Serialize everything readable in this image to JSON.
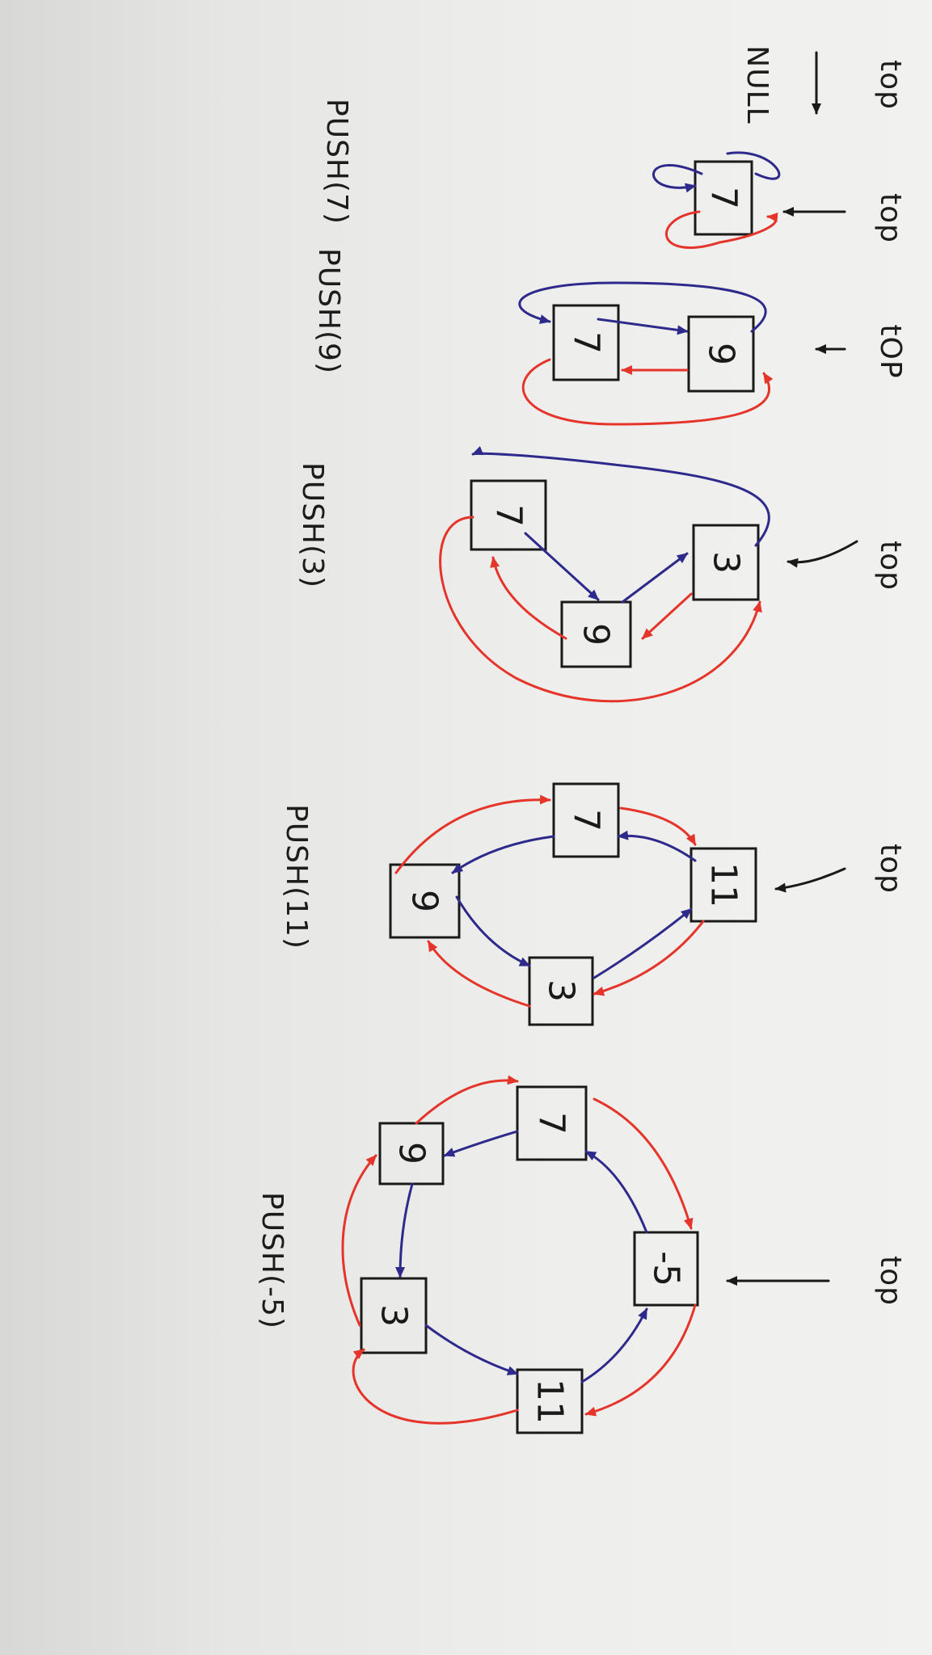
{
  "labels": {
    "top": "top",
    "top_alt": "tOP",
    "null": "NULL"
  },
  "operations": [
    {
      "label": "PUSH(7)",
      "values": [
        "7"
      ]
    },
    {
      "label": "PUSH(9)",
      "values": [
        "7",
        "9"
      ]
    },
    {
      "label": "PUSH(3)",
      "values": [
        "7",
        "9",
        "3"
      ]
    },
    {
      "label": "PUSH(11)",
      "values": [
        "7",
        "9",
        "3",
        "11"
      ]
    },
    {
      "label": "PUSH(-5)",
      "values": [
        "7",
        "9",
        "3",
        "11",
        "-5"
      ]
    }
  ],
  "colors": {
    "next_link": "#2e2a8c",
    "prev_link": "#e5342a",
    "ink": "#1a1a1a"
  }
}
